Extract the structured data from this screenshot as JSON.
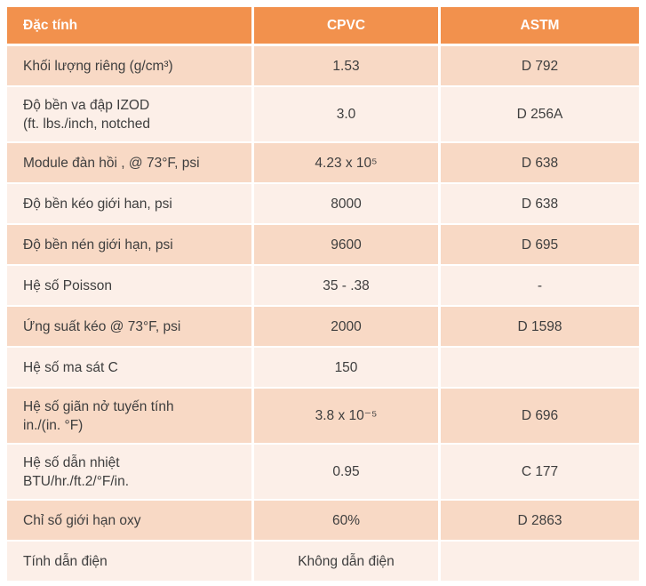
{
  "table": {
    "colors": {
      "header_bg": "#F2914D",
      "header_text": "#FFFFFF",
      "row_dark_bg": "#F8D9C5",
      "row_light_bg": "#FCEFE8",
      "body_text": "#3E3E3E"
    },
    "columns": {
      "property": "Đặc tính",
      "cpvc": "CPVC",
      "astm": "ASTM"
    },
    "rows": [
      {
        "property": "Khối lượng riêng (g/cm³)",
        "cpvc": "1.53",
        "astm": "D 792"
      },
      {
        "property": "Độ bền va đập IZOD",
        "property2": "(ft. lbs./inch, notched",
        "cpvc": "3.0",
        "astm": "D 256A"
      },
      {
        "property": "Module đàn hồi , @ 73°F, psi",
        "cpvc": "4.23 x 10⁵",
        "astm": "D 638"
      },
      {
        "property": "Độ bền kéo giới han, psi",
        "cpvc": "8000",
        "astm": "D 638"
      },
      {
        "property": "Độ bền nén giới hạn, psi",
        "cpvc": "9600",
        "astm": "D 695"
      },
      {
        "property": "Hệ số Poisson",
        "cpvc": "35 - .38",
        "astm": "-"
      },
      {
        "property": "Ứng suất kéo @ 73°F, psi",
        "cpvc": "2000",
        "astm": "D 1598"
      },
      {
        "property": "Hệ số ma sát C",
        "cpvc": "150",
        "astm": ""
      },
      {
        "property": "Hệ số giãn nở tuyến tính",
        "property2": "in./(in. °F)",
        "cpvc": "3.8 x 10⁻⁵",
        "astm": "D 696"
      },
      {
        "property": "Hệ số dẫn nhiệt",
        "property2": "BTU/hr./ft.2/°F/in.",
        "cpvc": "0.95",
        "astm": "C 177"
      },
      {
        "property": "Chỉ số giới hạn oxy",
        "cpvc": "60%",
        "astm": "D 2863"
      },
      {
        "property": "Tính dẫn điện",
        "cpvc": "Không dẫn điện",
        "astm": ""
      }
    ]
  }
}
